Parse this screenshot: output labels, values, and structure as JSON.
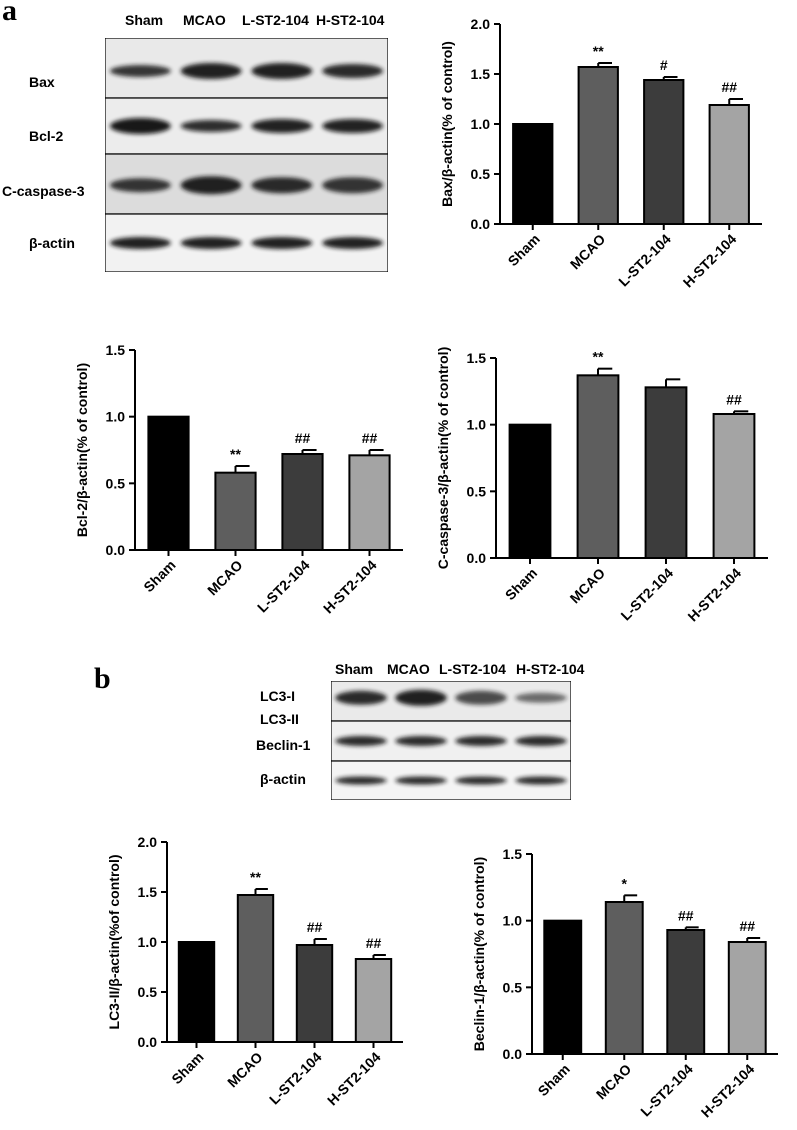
{
  "panels": {
    "a": "a",
    "b": "b"
  },
  "blot_a": {
    "lanes": [
      "Sham",
      "MCAO",
      "L-ST2-104",
      "H-ST2-104"
    ],
    "rows": [
      "Bax",
      "Bcl-2",
      "C-caspase-3",
      "β-actin"
    ]
  },
  "blot_b": {
    "lanes": [
      "Sham",
      "MCAO",
      "L-ST2-104",
      "H-ST2-104"
    ],
    "rows": [
      "LC3-I",
      "LC3-II",
      "Beclin-1",
      "β-actin"
    ]
  },
  "chart_data": [
    {
      "type": "bar",
      "categories": [
        "Sham",
        "MCAO",
        "L-ST2-104",
        "H-ST2-104"
      ],
      "values": [
        1.0,
        1.57,
        1.44,
        1.19
      ],
      "errors": [
        0,
        0.04,
        0.03,
        0.06
      ],
      "annotations": [
        "",
        "**",
        "#",
        "##"
      ],
      "ylabel": "Bax/β-actin(% of control)",
      "ylim": [
        0,
        2.0
      ],
      "yticks": [
        0.0,
        0.5,
        1.0,
        1.5,
        2.0
      ],
      "ytick_labels": [
        "0.0",
        "0.5",
        "1.0",
        "1.5",
        "2.0"
      ],
      "colors": [
        "#000000",
        "#5e5e5e",
        "#3c3c3c",
        "#a4a4a4"
      ]
    },
    {
      "type": "bar",
      "categories": [
        "Sham",
        "MCAO",
        "L-ST2-104",
        "H-ST2-104"
      ],
      "values": [
        1.0,
        0.58,
        0.72,
        0.71
      ],
      "errors": [
        0,
        0.05,
        0.03,
        0.04
      ],
      "annotations": [
        "",
        "**",
        "##",
        "##"
      ],
      "ylabel": "Bcl-2/β-actin(% of control)",
      "ylim": [
        0,
        1.5
      ],
      "yticks": [
        0.0,
        0.5,
        1.0,
        1.5
      ],
      "ytick_labels": [
        "0.0",
        "0.5",
        "1.0",
        "1.5"
      ],
      "colors": [
        "#000000",
        "#5e5e5e",
        "#3c3c3c",
        "#a4a4a4"
      ]
    },
    {
      "type": "bar",
      "categories": [
        "Sham",
        "MCAO",
        "L-ST2-104",
        "H-ST2-104"
      ],
      "values": [
        1.0,
        1.37,
        1.28,
        1.08
      ],
      "errors": [
        0,
        0.05,
        0.06,
        0.02
      ],
      "annotations": [
        "",
        "**",
        "",
        "##"
      ],
      "ylabel": "C-caspase-3/β-actin(% of control)",
      "ylim": [
        0,
        1.5
      ],
      "yticks": [
        0.0,
        0.5,
        1.0,
        1.5
      ],
      "ytick_labels": [
        "0.0",
        "0.5",
        "1.0",
        "1.5"
      ],
      "colors": [
        "#000000",
        "#5e5e5e",
        "#3c3c3c",
        "#a4a4a4"
      ]
    },
    {
      "type": "bar",
      "categories": [
        "Sham",
        "MCAO",
        "L-ST2-104",
        "H-ST2-104"
      ],
      "values": [
        1.0,
        1.47,
        0.97,
        0.83
      ],
      "errors": [
        0,
        0.06,
        0.06,
        0.04
      ],
      "annotations": [
        "",
        "**",
        "##",
        "##"
      ],
      "ylabel": "LC3-II/β-actin(%of control)",
      "ylim": [
        0,
        2.0
      ],
      "yticks": [
        0.0,
        0.5,
        1.0,
        1.5,
        2.0
      ],
      "ytick_labels": [
        "0.0",
        "0.5",
        "1.0",
        "1.5",
        "2.0"
      ],
      "colors": [
        "#000000",
        "#5e5e5e",
        "#3c3c3c",
        "#a4a4a4"
      ]
    },
    {
      "type": "bar",
      "categories": [
        "Sham",
        "MCAO",
        "L-ST2-104",
        "H-ST2-104"
      ],
      "values": [
        1.0,
        1.14,
        0.93,
        0.84
      ],
      "errors": [
        0,
        0.05,
        0.02,
        0.03
      ],
      "annotations": [
        "",
        "*",
        "##",
        "##"
      ],
      "ylabel": "Beclin-1/β-actin(% of control)",
      "ylim": [
        0,
        1.5
      ],
      "yticks": [
        0.0,
        0.5,
        1.0,
        1.5
      ],
      "ytick_labels": [
        "0.0",
        "0.5",
        "1.0",
        "1.5"
      ],
      "colors": [
        "#000000",
        "#5e5e5e",
        "#3c3c3c",
        "#a4a4a4"
      ]
    }
  ]
}
